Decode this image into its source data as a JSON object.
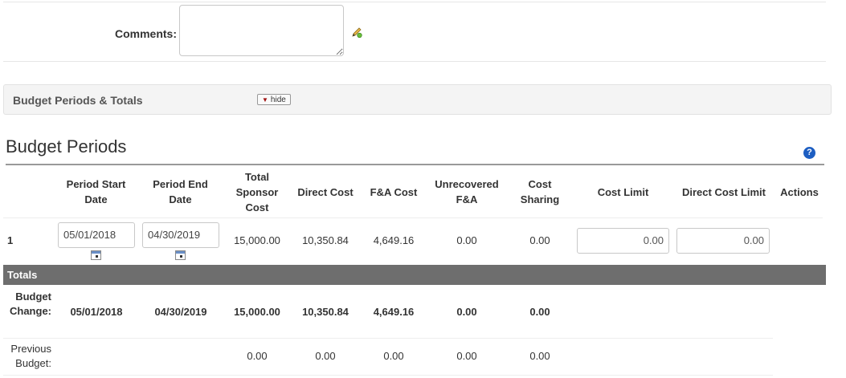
{
  "comments": {
    "label": "Comments:",
    "value": ""
  },
  "section": {
    "title": "Budget Periods & Totals",
    "hide_label": "hide"
  },
  "budget_periods": {
    "title": "Budget Periods",
    "help_icon": "?",
    "columns": {
      "period_start": "Period Start Date",
      "period_end": "Period End Date",
      "total_sponsor": "Total Sponsor Cost",
      "direct_cost": "Direct Cost",
      "fa_cost": "F&A Cost",
      "unrecovered": "Unrecovered F&A",
      "cost_sharing": "Cost Sharing",
      "cost_limit": "Cost Limit",
      "direct_cost_limit": "Direct Cost Limit",
      "actions": "Actions"
    },
    "rows": [
      {
        "period": "1",
        "start_date": "05/01/2018",
        "end_date": "04/30/2019",
        "total_sponsor": "15,000.00",
        "direct_cost": "10,350.84",
        "fa_cost": "4,649.16",
        "unrecovered": "0.00",
        "cost_sharing": "0.00",
        "cost_limit": "0.00",
        "direct_cost_limit": "0.00"
      }
    ],
    "totals": {
      "label": "Totals",
      "budget_change": {
        "label": "Budget Change:",
        "start_date": "05/01/2018",
        "end_date": "04/30/2019",
        "total_sponsor": "15,000.00",
        "direct_cost": "10,350.84",
        "fa_cost": "4,649.16",
        "unrecovered": "0.00",
        "cost_sharing": "0.00"
      },
      "previous_budget": {
        "label": "Previous Budget:",
        "total_sponsor": "0.00",
        "direct_cost": "0.00",
        "fa_cost": "0.00",
        "unrecovered": "0.00",
        "cost_sharing": "0.00"
      }
    }
  }
}
